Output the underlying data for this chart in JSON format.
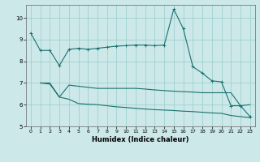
{
  "xlabel": "Humidex (Indice chaleur)",
  "bg_color": "#cce8e8",
  "grid_color": "#99cccc",
  "line_color": "#1a7070",
  "xlim": [
    -0.5,
    23.5
  ],
  "ylim": [
    5.0,
    10.6
  ],
  "yticks": [
    5,
    6,
    7,
    8,
    9,
    10
  ],
  "xticks": [
    0,
    1,
    2,
    3,
    4,
    5,
    6,
    7,
    8,
    9,
    10,
    11,
    12,
    13,
    14,
    15,
    16,
    17,
    18,
    19,
    20,
    21,
    22,
    23
  ],
  "line1_x": [
    0,
    1,
    2,
    3,
    4,
    5,
    6,
    7,
    8,
    9,
    10,
    11,
    12,
    13,
    14,
    15,
    16,
    17,
    18,
    19,
    20,
    21,
    22,
    23
  ],
  "line1_y": [
    9.3,
    8.5,
    8.5,
    7.8,
    8.55,
    8.6,
    8.55,
    8.6,
    8.65,
    8.7,
    8.72,
    8.75,
    8.75,
    8.72,
    8.75,
    10.4,
    9.5,
    7.75,
    7.45,
    7.1,
    7.05,
    5.95,
    5.95,
    5.45
  ],
  "line2_x": [
    1,
    2,
    3,
    4,
    5,
    6,
    7,
    8,
    9,
    10,
    11,
    12,
    13,
    14,
    15,
    16,
    17,
    18,
    19,
    20,
    21,
    22,
    23
  ],
  "line2_y": [
    7.0,
    6.95,
    6.35,
    6.9,
    6.85,
    6.8,
    6.75,
    6.75,
    6.75,
    6.75,
    6.75,
    6.72,
    6.68,
    6.65,
    6.62,
    6.6,
    6.58,
    6.55,
    6.55,
    6.55,
    6.55,
    5.95,
    6.0
  ],
  "line3_x": [
    1,
    2,
    3,
    4,
    5,
    6,
    7,
    8,
    9,
    10,
    11,
    12,
    13,
    14,
    15,
    16,
    17,
    18,
    19,
    20,
    21,
    22,
    23
  ],
  "line3_y": [
    7.0,
    7.0,
    6.35,
    6.25,
    6.05,
    6.02,
    6.0,
    5.95,
    5.9,
    5.87,
    5.83,
    5.8,
    5.77,
    5.75,
    5.73,
    5.7,
    5.68,
    5.65,
    5.62,
    5.6,
    5.5,
    5.45,
    5.4
  ]
}
